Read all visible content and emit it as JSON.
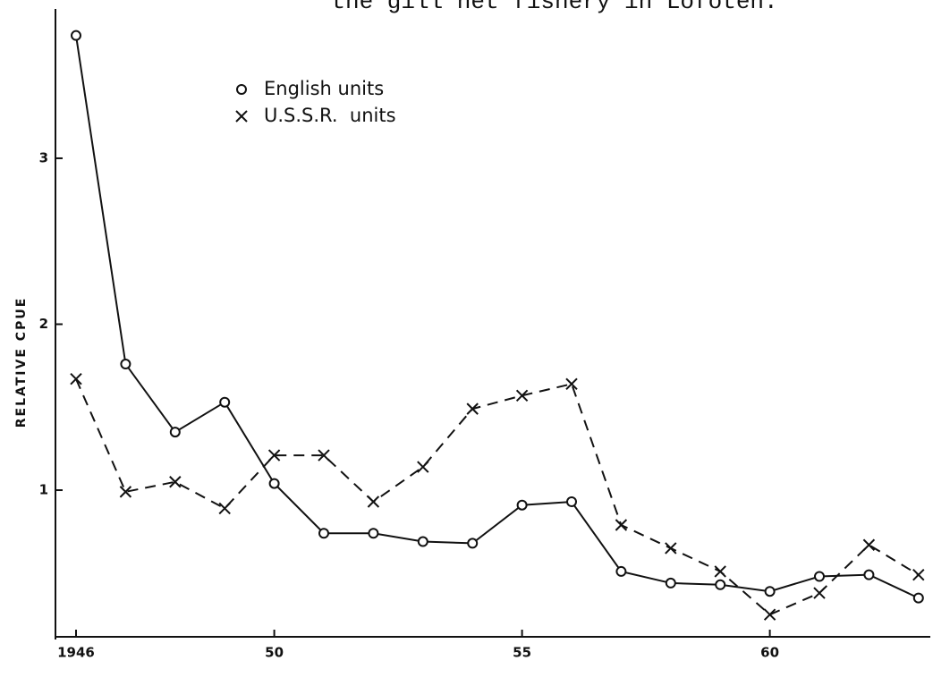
{
  "chart_data": {
    "type": "line",
    "title": "the gill net fishery in Lofoten.",
    "ylabel": "RELATIVE CPUE",
    "x": [
      1946,
      1947,
      1948,
      1949,
      1950,
      1951,
      1952,
      1953,
      1954,
      1955,
      1956,
      1957,
      1958,
      1959,
      1960,
      1961,
      1962,
      1963
    ],
    "series": [
      {
        "name": "English units",
        "color": "#111111",
        "marker": "circle",
        "linestyle": "solid",
        "values": [
          3.74,
          1.76,
          1.35,
          1.53,
          1.04,
          0.74,
          0.74,
          0.69,
          0.68,
          0.91,
          0.93,
          0.51,
          0.44,
          0.43,
          0.39,
          0.48,
          0.49,
          0.35
        ]
      },
      {
        "name": "U.S.S.R.  units",
        "color": "#111111",
        "marker": "x",
        "linestyle": "dashed",
        "values": [
          1.67,
          0.99,
          1.05,
          0.89,
          1.21,
          1.21,
          0.93,
          1.14,
          1.49,
          1.57,
          1.64,
          0.79,
          0.65,
          0.51,
          0.25,
          0.38,
          0.67,
          0.49
        ]
      }
    ],
    "xlim": [
      1945.6,
      1963.4
    ],
    "xticks": [
      {
        "value": 1946,
        "label": "1946"
      },
      {
        "value": 1950,
        "label": "50"
      },
      {
        "value": 1955,
        "label": "55"
      },
      {
        "value": 1960,
        "label": "60"
      }
    ],
    "ylim": [
      0.1,
      3.9
    ],
    "yticks": [
      1,
      2,
      3
    ],
    "legend": "upper-left",
    "grid": false
  }
}
